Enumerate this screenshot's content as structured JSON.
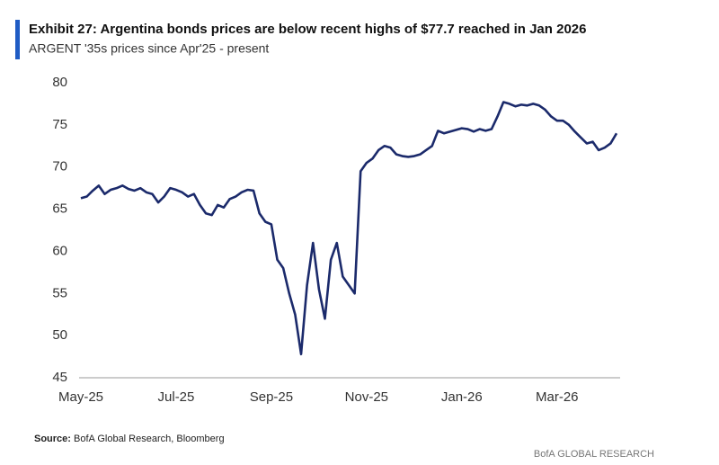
{
  "chart_data": {
    "type": "line",
    "title": "Exhibit 27:  Argentina bonds prices are below recent highs of $77.7 reached in Jan 2026",
    "subtitle": "ARGENT '35s prices since Apr'25 - present",
    "source_label": "Source:",
    "source": "BofA Global Research, Bloomberg",
    "footer": "BofA GLOBAL RESEARCH",
    "categories": [
      "May-25",
      null,
      null,
      null,
      null,
      null,
      null,
      null,
      null,
      null,
      null,
      null,
      null,
      null,
      null,
      null,
      "Jul-25",
      null,
      null,
      null,
      null,
      null,
      null,
      null,
      null,
      null,
      null,
      null,
      null,
      null,
      null,
      null,
      "Sep-25",
      null,
      null,
      null,
      null,
      null,
      null,
      null,
      null,
      null,
      null,
      null,
      null,
      null,
      null,
      null,
      "Nov-25",
      null,
      null,
      null,
      null,
      null,
      null,
      null,
      null,
      null,
      null,
      null,
      null,
      null,
      null,
      null,
      "Jan-26",
      null,
      null,
      null,
      null,
      null,
      null,
      null,
      null,
      null,
      null,
      null,
      null,
      null,
      null,
      null,
      "Mar-26",
      null,
      null,
      null,
      null,
      null,
      null,
      null,
      null,
      null,
      null
    ],
    "series": [
      {
        "name": "ARGENT '35s",
        "color": "#1b2a6b",
        "values": [
          66.3,
          66.5,
          67.2,
          67.8,
          66.8,
          67.3,
          67.5,
          67.8,
          67.4,
          67.2,
          67.5,
          67,
          66.8,
          65.8,
          66.5,
          67.5,
          67.3,
          67,
          66.5,
          66.8,
          65.5,
          64.5,
          64.3,
          65.5,
          65.2,
          66.2,
          66.5,
          67,
          67.3,
          67.2,
          64.5,
          63.5,
          63.2,
          59,
          58,
          55,
          52.5,
          47.8,
          56,
          61,
          55.5,
          52,
          59,
          61,
          57,
          56,
          55,
          69.5,
          70.5,
          71,
          72,
          72.5,
          72.3,
          71.5,
          71.3,
          71.2,
          71.3,
          71.5,
          72,
          72.5,
          74.3,
          74,
          74.2,
          74.4,
          74.6,
          74.5,
          74.2,
          74.5,
          74.3,
          74.5,
          76,
          77.7,
          77.5,
          77.2,
          77.4,
          77.3,
          77.5,
          77.3,
          76.8,
          76,
          75.5,
          75.5,
          75,
          74.2,
          73.5,
          72.8,
          73,
          72,
          72.3,
          72.8,
          74
        ]
      }
    ],
    "ylim": [
      45,
      80
    ],
    "yticks": [
      45,
      50,
      55,
      60,
      65,
      70,
      75,
      80
    ]
  }
}
